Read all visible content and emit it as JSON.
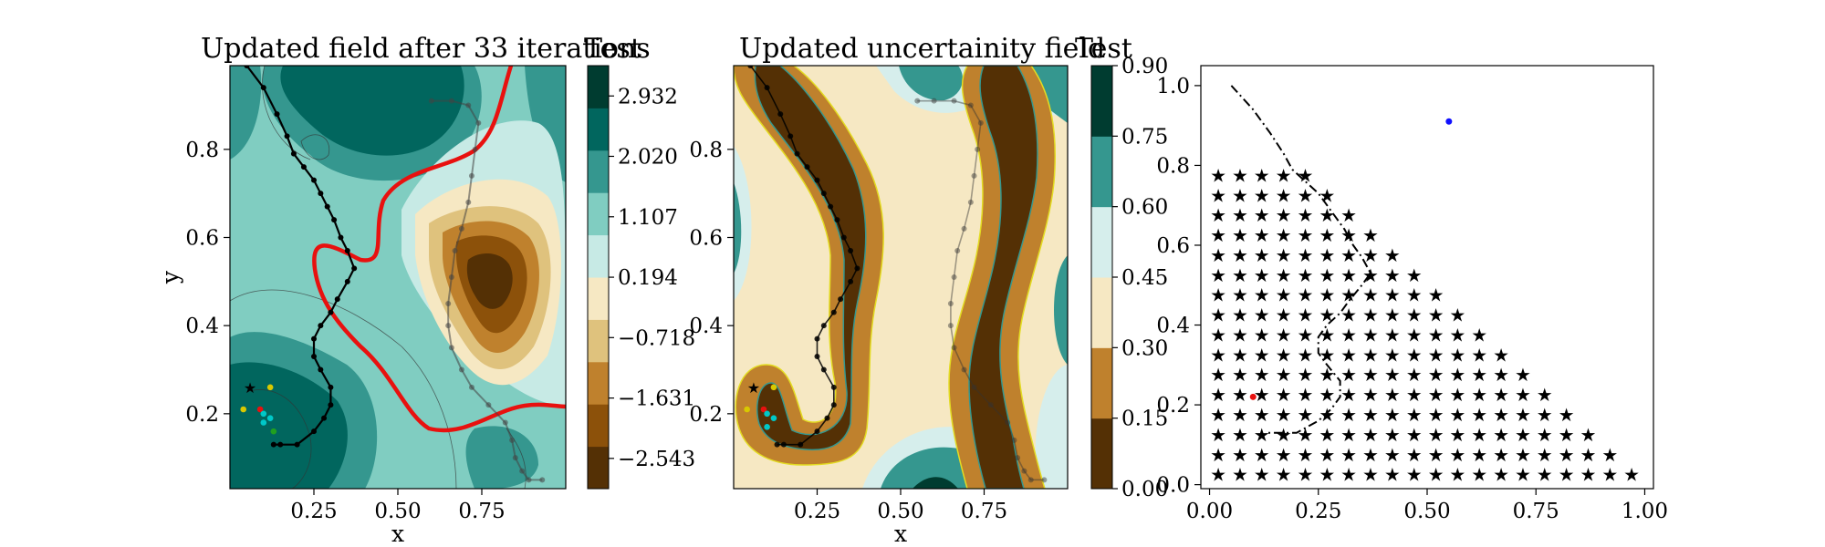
{
  "chart_data": [
    {
      "type": "contour",
      "title": "Updated field after 33 iterations",
      "xlabel": "x",
      "ylabel": "y",
      "xticks": [
        "0.25",
        "0.50",
        "0.75"
      ],
      "xtick_values": [
        0.25,
        0.5,
        0.75
      ],
      "yticks": [
        "0.2",
        "0.4",
        "0.6",
        "0.8"
      ],
      "ytick_values": [
        0.2,
        0.4,
        0.6,
        0.8
      ],
      "xlim": [
        0.0,
        1.0
      ],
      "ylim": [
        0.03,
        0.99
      ],
      "colorbar": {
        "label": "Test",
        "ticks": [
          "2.932",
          "2.020",
          "1.107",
          "0.194",
          "−0.718",
          "−1.631",
          "−2.543"
        ],
        "tick_values": [
          2.932,
          2.02,
          1.107,
          0.194,
          -0.718,
          -1.631,
          -2.543
        ],
        "range": [
          -3.0,
          3.39
        ],
        "colors": [
          "#543005",
          "#8c510a",
          "#bf812d",
          "#dfc27d",
          "#f6e8c3",
          "#c7eae5",
          "#80cdc1",
          "#35978f",
          "#01665e",
          "#003c30"
        ]
      },
      "threshold_contour_color": "#e8110f",
      "path": {
        "x": [
          0.05,
          0.1,
          0.14,
          0.17,
          0.19,
          0.22,
          0.25,
          0.27,
          0.29,
          0.31,
          0.33,
          0.35,
          0.37,
          0.35,
          0.32,
          0.3,
          0.27,
          0.25,
          0.25,
          0.27,
          0.3,
          0.3,
          0.28,
          0.25,
          0.2,
          0.15,
          0.13
        ],
        "y": [
          0.99,
          0.94,
          0.88,
          0.83,
          0.79,
          0.76,
          0.73,
          0.7,
          0.67,
          0.64,
          0.6,
          0.57,
          0.53,
          0.5,
          0.46,
          0.43,
          0.4,
          0.37,
          0.33,
          0.3,
          0.26,
          0.22,
          0.19,
          0.16,
          0.13,
          0.13,
          0.13
        ]
      },
      "path2": {
        "x": [
          0.6,
          0.66,
          0.71,
          0.74,
          0.73,
          0.72,
          0.71,
          0.69,
          0.67,
          0.66,
          0.65,
          0.65,
          0.66,
          0.69,
          0.72,
          0.77,
          0.82,
          0.84,
          0.85,
          0.87,
          0.89,
          0.93
        ],
        "y": [
          0.91,
          0.91,
          0.9,
          0.86,
          0.8,
          0.74,
          0.68,
          0.62,
          0.57,
          0.51,
          0.45,
          0.4,
          0.35,
          0.3,
          0.26,
          0.22,
          0.18,
          0.14,
          0.1,
          0.07,
          0.05,
          0.05
        ]
      },
      "markers": [
        {
          "x": 0.06,
          "y": 0.26,
          "color": "#1010ff",
          "symbol": "star"
        },
        {
          "x": 0.04,
          "y": 0.21,
          "color": "#d8c800"
        },
        {
          "x": 0.12,
          "y": 0.26,
          "color": "#d8c800"
        },
        {
          "x": 0.09,
          "y": 0.21,
          "color": "#e8110f"
        },
        {
          "x": 0.1,
          "y": 0.2,
          "color": "#00c8c8"
        },
        {
          "x": 0.12,
          "y": 0.19,
          "color": "#00c8c8"
        },
        {
          "x": 0.1,
          "y": 0.18,
          "color": "#00c8c8"
        },
        {
          "x": 0.13,
          "y": 0.16,
          "color": "#20a020"
        }
      ]
    },
    {
      "type": "contour",
      "title": "Updated uncertainity field",
      "xlabel": "x",
      "xticks": [
        "0.25",
        "0.50",
        "0.75"
      ],
      "xtick_values": [
        0.25,
        0.5,
        0.75
      ],
      "yticks": [
        "0.2",
        "0.4",
        "0.6",
        "0.8"
      ],
      "ytick_values": [
        0.2,
        0.4,
        0.6,
        0.8
      ],
      "xlim": [
        0.0,
        1.0
      ],
      "ylim": [
        0.03,
        0.99
      ],
      "colorbar": {
        "label": "Test",
        "ticks": [
          "0.00",
          "0.15",
          "0.30",
          "0.45",
          "0.60",
          "0.75",
          "0.90"
        ],
        "tick_values": [
          0.0,
          0.15,
          0.3,
          0.45,
          0.6,
          0.75,
          0.9
        ],
        "range": [
          0.0,
          0.9
        ],
        "colors": [
          "#543005",
          "#bf812d",
          "#f6e8c3",
          "#d6eeec",
          "#35978f",
          "#003c30"
        ]
      },
      "path": {
        "x": [
          0.05,
          0.1,
          0.14,
          0.17,
          0.19,
          0.22,
          0.25,
          0.27,
          0.29,
          0.31,
          0.33,
          0.35,
          0.37,
          0.35,
          0.32,
          0.3,
          0.27,
          0.25,
          0.25,
          0.27,
          0.3,
          0.3,
          0.28,
          0.25,
          0.2,
          0.15,
          0.13
        ],
        "y": [
          0.99,
          0.94,
          0.88,
          0.83,
          0.79,
          0.76,
          0.73,
          0.7,
          0.67,
          0.64,
          0.6,
          0.57,
          0.53,
          0.5,
          0.46,
          0.43,
          0.4,
          0.37,
          0.33,
          0.3,
          0.26,
          0.22,
          0.19,
          0.16,
          0.13,
          0.13,
          0.13
        ]
      },
      "path2": {
        "x": [
          0.55,
          0.6,
          0.66,
          0.71,
          0.74,
          0.73,
          0.72,
          0.71,
          0.69,
          0.67,
          0.66,
          0.65,
          0.65,
          0.66,
          0.69,
          0.72,
          0.77,
          0.82,
          0.84,
          0.85,
          0.87,
          0.89,
          0.93
        ],
        "y": [
          0.91,
          0.91,
          0.91,
          0.9,
          0.86,
          0.8,
          0.74,
          0.68,
          0.62,
          0.57,
          0.51,
          0.45,
          0.4,
          0.35,
          0.3,
          0.26,
          0.22,
          0.18,
          0.14,
          0.1,
          0.07,
          0.05,
          0.05
        ]
      },
      "markers": [
        {
          "x": 0.06,
          "y": 0.26,
          "color": "#1010ff",
          "symbol": "star"
        },
        {
          "x": 0.04,
          "y": 0.21,
          "color": "#d8c800"
        },
        {
          "x": 0.12,
          "y": 0.26,
          "color": "#d8c800"
        },
        {
          "x": 0.09,
          "y": 0.21,
          "color": "#e8110f"
        },
        {
          "x": 0.1,
          "y": 0.2,
          "color": "#00c8c8"
        },
        {
          "x": 0.12,
          "y": 0.19,
          "color": "#00c8c8"
        },
        {
          "x": 0.1,
          "y": 0.17,
          "color": "#00c8c8"
        }
      ]
    },
    {
      "type": "scatter",
      "xticks": [
        "0.00",
        "0.25",
        "0.50",
        "0.75",
        "1.00"
      ],
      "xtick_values": [
        0.0,
        0.25,
        0.5,
        0.75,
        1.0
      ],
      "yticks": [
        "0.0",
        "0.2",
        "0.4",
        "0.6",
        "0.8",
        "1.0"
      ],
      "ytick_values": [
        0.0,
        0.2,
        0.4,
        0.6,
        0.8,
        1.0
      ],
      "xlim": [
        -0.02,
        1.02
      ],
      "ylim": [
        -0.01,
        1.05
      ],
      "grid_spacing": 0.05,
      "grid_start": 0.025,
      "star_color": "#9467bd",
      "blue_point": {
        "x": 0.55,
        "y": 0.91,
        "color": "#1010ff"
      },
      "red_point": {
        "x": 0.1,
        "y": 0.22,
        "color": "#e8110f"
      },
      "dashdot_path": {
        "x": [
          0.05,
          0.1,
          0.14,
          0.17,
          0.19,
          0.22,
          0.25,
          0.27,
          0.29,
          0.31,
          0.33,
          0.35,
          0.37,
          0.35,
          0.32,
          0.3,
          0.27,
          0.25,
          0.25,
          0.27,
          0.3,
          0.3,
          0.28,
          0.25,
          0.2,
          0.15,
          0.13
        ],
        "y": [
          1.0,
          0.94,
          0.88,
          0.83,
          0.79,
          0.76,
          0.73,
          0.7,
          0.67,
          0.64,
          0.6,
          0.57,
          0.53,
          0.5,
          0.46,
          0.43,
          0.4,
          0.37,
          0.33,
          0.3,
          0.26,
          0.22,
          0.19,
          0.16,
          0.13,
          0.13,
          0.13
        ]
      }
    }
  ]
}
